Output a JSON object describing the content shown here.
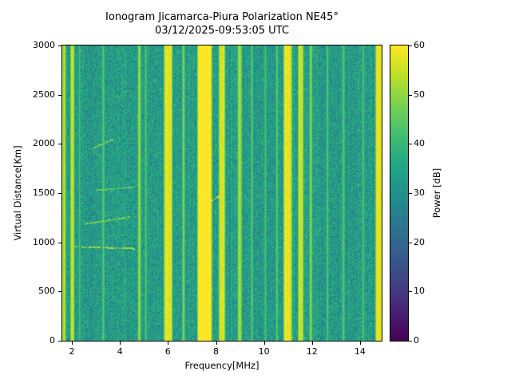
{
  "chart_data": {
    "type": "heatmap",
    "title": "Ionogram Jicamarca-Piura Polarization NE45°",
    "subtitle": "03/12/2025-09:53:05 UTC",
    "xlabel": "Frequency[MHz]",
    "ylabel": "Virtual Distance[Km]",
    "colorbar_label": "Power [dB]",
    "x_range_mhz": [
      1.6,
      14.9
    ],
    "y_range_km": [
      0,
      3000
    ],
    "power_range_db": [
      0,
      60
    ],
    "x_ticks": [
      2,
      4,
      6,
      8,
      10,
      12,
      14
    ],
    "y_ticks": [
      0,
      500,
      1000,
      1500,
      2000,
      2500,
      3000
    ],
    "colorbar_ticks": [
      0,
      10,
      20,
      30,
      40,
      50,
      60
    ],
    "legend_position": "right-colorbar",
    "grid": false,
    "colormap": "viridis",
    "colormap_stops": [
      [
        0,
        "#440154"
      ],
      [
        0.1,
        "#482475"
      ],
      [
        0.2,
        "#414487"
      ],
      [
        0.3,
        "#355f8d"
      ],
      [
        0.4,
        "#2a788e"
      ],
      [
        0.5,
        "#21918c"
      ],
      [
        0.6,
        "#22a884"
      ],
      [
        0.7,
        "#44bf70"
      ],
      [
        0.8,
        "#7ad151"
      ],
      [
        0.9,
        "#bddf26"
      ],
      [
        1,
        "#fde725"
      ]
    ],
    "background_power_db": {
      "mean": 33,
      "noise": 8
    },
    "rfi_bands": [
      {
        "f1": 1.62,
        "f2": 1.72,
        "p": 53
      },
      {
        "f1": 1.98,
        "f2": 2.06,
        "p": 56
      },
      {
        "f1": 2.3,
        "f2": 2.34,
        "p": 42
      },
      {
        "f1": 3.28,
        "f2": 3.34,
        "p": 43
      },
      {
        "f1": 4.78,
        "f2": 4.84,
        "p": 50
      },
      {
        "f1": 5.06,
        "f2": 5.1,
        "p": 44
      },
      {
        "f1": 5.88,
        "f2": 6.14,
        "p": 58
      },
      {
        "f1": 6.62,
        "f2": 6.68,
        "p": 48
      },
      {
        "f1": 7.28,
        "f2": 7.78,
        "p": 63
      },
      {
        "f1": 8.16,
        "f2": 8.34,
        "p": 57
      },
      {
        "f1": 8.94,
        "f2": 9.04,
        "p": 52
      },
      {
        "f1": 9.48,
        "f2": 9.52,
        "p": 44
      },
      {
        "f1": 10.04,
        "f2": 10.08,
        "p": 43
      },
      {
        "f1": 10.52,
        "f2": 10.56,
        "p": 44
      },
      {
        "f1": 10.86,
        "f2": 11.12,
        "p": 58
      },
      {
        "f1": 11.46,
        "f2": 11.6,
        "p": 56
      },
      {
        "f1": 11.92,
        "f2": 11.98,
        "p": 48
      },
      {
        "f1": 12.62,
        "f2": 12.66,
        "p": 43
      },
      {
        "f1": 13.28,
        "f2": 13.34,
        "p": 44
      },
      {
        "f1": 14.12,
        "f2": 14.16,
        "p": 43
      },
      {
        "f1": 14.68,
        "f2": 14.9,
        "p": 57
      }
    ],
    "echo_traces": [
      {
        "f1": 2.05,
        "f2": 4.6,
        "r1": 960,
        "r2": 940,
        "p": 52
      },
      {
        "f1": 2.55,
        "f2": 4.4,
        "r1": 1190,
        "r2": 1260,
        "p": 49
      },
      {
        "f1": 2.95,
        "f2": 4.55,
        "r1": 1530,
        "r2": 1565,
        "p": 46
      },
      {
        "f1": 2.85,
        "f2": 3.7,
        "r1": 1955,
        "r2": 2050,
        "p": 49
      },
      {
        "f1": 7.85,
        "f2": 8.15,
        "r1": 1430,
        "r2": 1470,
        "p": 57
      }
    ]
  }
}
